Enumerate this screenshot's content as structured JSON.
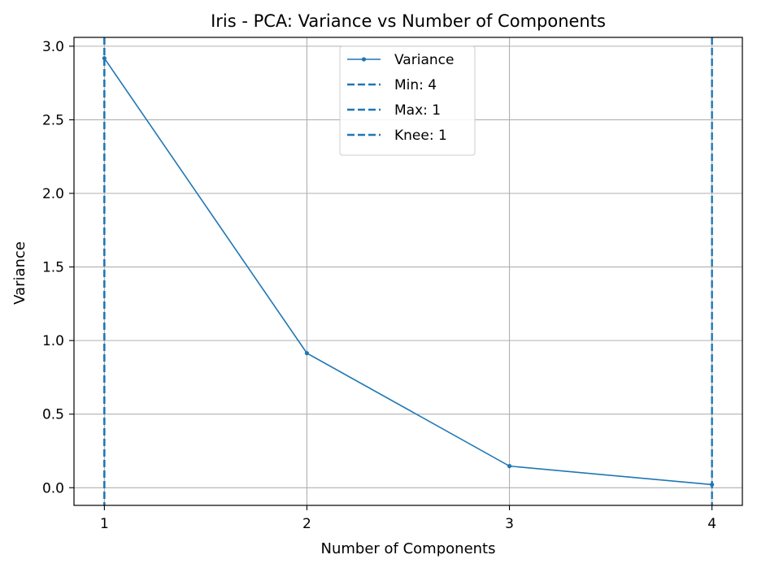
{
  "chart_data": {
    "type": "line",
    "title": "Iris - PCA: Variance vs Number of Components",
    "xlabel": "Number of Components",
    "ylabel": "Variance",
    "x": [
      1,
      2,
      3,
      4
    ],
    "x_ticks": [
      "1",
      "2",
      "3",
      "4"
    ],
    "y_ticks": [
      "0.0",
      "0.5",
      "1.0",
      "1.5",
      "2.0",
      "2.5",
      "3.0"
    ],
    "y_tick_values": [
      0.0,
      0.5,
      1.0,
      1.5,
      2.0,
      2.5,
      3.0
    ],
    "xlim": [
      0.85,
      4.15
    ],
    "ylim": [
      -0.12,
      3.06
    ],
    "grid": true,
    "legend_position": "top-center",
    "series": [
      {
        "name": "Variance",
        "values": [
          2.918,
          0.914,
          0.147,
          0.021
        ],
        "color": "#1f77b4",
        "style": "solid-with-markers"
      }
    ],
    "reference_lines": [
      {
        "name": "Min: 4",
        "x": 4,
        "color": "#1f77b4",
        "style": "dashed"
      },
      {
        "name": "Max: 1",
        "x": 1,
        "color": "#1f77b4",
        "style": "dashed"
      },
      {
        "name": "Knee: 1",
        "x": 1,
        "color": "#1f77b4",
        "style": "dashed"
      }
    ]
  }
}
